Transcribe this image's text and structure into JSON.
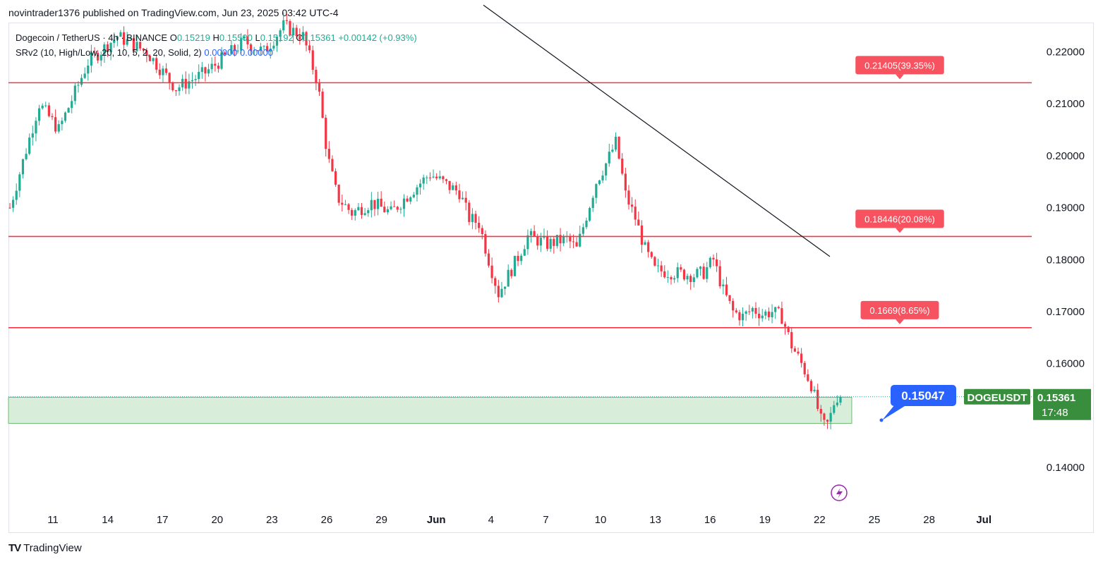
{
  "header": {
    "published_text": "novintrader1376 published on TradingView.com, Jun 23, 2025 03:42 UTC-4"
  },
  "legend": {
    "symbol_text": "Dogecoin / TetherUS · 4h · BINANCE",
    "o_label": "O",
    "o_value": "0.15219",
    "h_label": "H",
    "h_value": "0.15500",
    "l_label": "L",
    "l_value": "0.15192",
    "c_label": "C",
    "c_value": "0.15361",
    "change": "+0.00142 (+0.93%)",
    "indicator_text": "SRv2 (10, High/Low, 20, 10, 5, 2, 20, Solid, 2)",
    "indicator_value1": "0.00000",
    "indicator_value2": "0.00000"
  },
  "footer": {
    "brand": "TradingView",
    "logo": "TV"
  },
  "colors": {
    "up": "#22ab94",
    "down": "#f23645",
    "level_line": "#f23645",
    "level_label_bg": "#f7525f",
    "zone_fill": "#d8eeda",
    "zone_border": "#4caf50",
    "price_label_bg": "#388e3c",
    "callout_bg": "#2962ff",
    "trendline": "#131722"
  },
  "chart_data": {
    "type": "candlestick",
    "ylim": [
      0.132,
      0.2255
    ],
    "y_ticks": [
      "0.14000",
      "0.15000",
      "0.16000",
      "0.17000",
      "0.18000",
      "0.19000",
      "0.20000",
      "0.21000",
      "0.22000"
    ],
    "x_ticks": [
      "11",
      "14",
      "17",
      "20",
      "23",
      "26",
      "29",
      "Jun",
      "4",
      "7",
      "10",
      "13",
      "16",
      "19",
      "22",
      "25",
      "28",
      "Jul"
    ],
    "candle_path": [
      [
        0,
        0.19
      ],
      [
        3,
        0.21
      ],
      [
        5,
        0.205
      ],
      [
        8,
        0.218
      ],
      [
        11,
        0.223
      ],
      [
        14,
        0.22
      ],
      [
        17,
        0.213
      ],
      [
        20,
        0.216
      ],
      [
        24,
        0.222
      ],
      [
        26,
        0.22
      ],
      [
        28,
        0.225
      ],
      [
        30,
        0.223
      ],
      [
        31.5,
        0.214
      ],
      [
        32.5,
        0.2
      ],
      [
        33.5,
        0.192
      ],
      [
        35,
        0.189
      ],
      [
        37,
        0.191
      ],
      [
        39,
        0.189
      ],
      [
        41,
        0.193
      ],
      [
        43,
        0.1965
      ],
      [
        45,
        0.194
      ],
      [
        46,
        0.193
      ],
      [
        47,
        0.188
      ],
      [
        48,
        0.187
      ],
      [
        49,
        0.18
      ],
      [
        50,
        0.1735
      ],
      [
        51,
        0.177
      ],
      [
        52,
        0.1805
      ],
      [
        53,
        0.1845
      ],
      [
        55,
        0.183
      ],
      [
        57,
        0.184
      ],
      [
        58,
        0.182
      ],
      [
        59,
        0.1885
      ],
      [
        60,
        0.195
      ],
      [
        61,
        0.1985
      ],
      [
        62,
        0.2025
      ],
      [
        62.5,
        0.198
      ],
      [
        63,
        0.1925
      ],
      [
        64,
        0.188
      ],
      [
        65,
        0.182
      ],
      [
        66,
        0.178
      ],
      [
        68,
        0.1775
      ],
      [
        70,
        0.177
      ],
      [
        71,
        0.1775
      ],
      [
        72,
        0.18
      ],
      [
        73,
        0.174
      ],
      [
        74,
        0.17
      ],
      [
        75,
        0.169
      ],
      [
        76,
        0.1705
      ],
      [
        77,
        0.1695
      ],
      [
        78,
        0.17
      ],
      [
        79,
        0.169
      ],
      [
        80,
        0.1635
      ],
      [
        81,
        0.16
      ],
      [
        82,
        0.156
      ],
      [
        83,
        0.149
      ],
      [
        83.5,
        0.1475
      ],
      [
        84,
        0.15
      ],
      [
        84.5,
        0.1536
      ]
    ],
    "horizontal_levels": [
      {
        "value": 0.21405,
        "label": "0.21405(39.35%)"
      },
      {
        "value": 0.18446,
        "label": "0.18446(20.08%)"
      },
      {
        "value": 0.1669,
        "label": "0.1669(8.65%)"
      }
    ],
    "support_zone": {
      "top": 0.1535,
      "bottom": 0.1485
    },
    "trendline": {
      "from": [
        0.163,
        0.229
      ],
      "to": [
        0.1762,
        0.1806
      ]
    },
    "last_price": {
      "symbol": "DOGEUSDT",
      "value": "0.15361",
      "countdown": "17:48"
    },
    "callout": {
      "label": "0.15047"
    }
  }
}
